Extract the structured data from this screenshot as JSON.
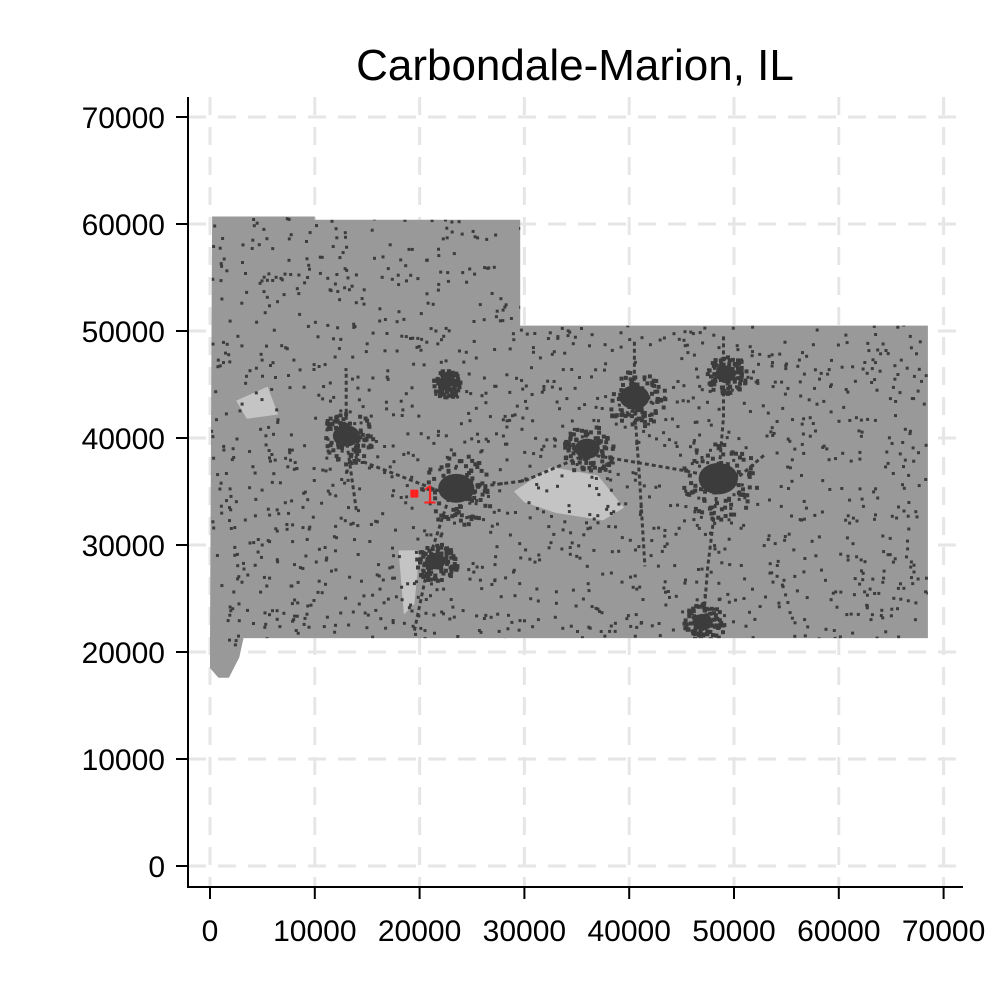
{
  "chart_data": {
    "type": "scatter",
    "title": "Carbondale-Marion, IL",
    "xlabel": "",
    "ylabel": "",
    "xlim": [
      0,
      70000
    ],
    "ylim": [
      0,
      70000
    ],
    "x_ticks": [
      "0",
      "10000",
      "20000",
      "30000",
      "40000",
      "50000",
      "60000",
      "70000"
    ],
    "y_ticks": [
      "0",
      "10000",
      "20000",
      "30000",
      "40000",
      "50000",
      "60000",
      "70000"
    ],
    "grid": true,
    "region_outline": [
      [
        200,
        60700
      ],
      [
        10000,
        60700
      ],
      [
        10000,
        60400
      ],
      [
        29600,
        60400
      ],
      [
        29600,
        50500
      ],
      [
        68500,
        50500
      ],
      [
        68500,
        21300
      ],
      [
        3200,
        21300
      ],
      [
        2800,
        19500
      ],
      [
        1800,
        17600
      ],
      [
        800,
        17600
      ],
      [
        0,
        18500
      ],
      [
        0,
        21500
      ]
    ],
    "urban_clusters": [
      {
        "x": 13000,
        "y": 40200,
        "r": 1700
      },
      {
        "x": 23500,
        "y": 35300,
        "r": 2300
      },
      {
        "x": 40500,
        "y": 43800,
        "r": 1900
      },
      {
        "x": 48500,
        "y": 36200,
        "r": 2500
      },
      {
        "x": 49200,
        "y": 46000,
        "r": 1300
      },
      {
        "x": 36000,
        "y": 39000,
        "r": 1600
      },
      {
        "x": 21500,
        "y": 28500,
        "r": 1300
      },
      {
        "x": 47000,
        "y": 22800,
        "r": 1300
      },
      {
        "x": 22500,
        "y": 45200,
        "r": 900
      }
    ],
    "water_areas": [
      {
        "points": [
          [
            29000,
            35000
          ],
          [
            32500,
            37300
          ],
          [
            37000,
            36500
          ],
          [
            39500,
            33500
          ],
          [
            37500,
            32300
          ],
          [
            33000,
            33000
          ],
          [
            30000,
            34000
          ]
        ]
      },
      {
        "points": [
          [
            2500,
            43500
          ],
          [
            5500,
            44800
          ],
          [
            6500,
            42200
          ],
          [
            3500,
            41800
          ]
        ]
      },
      {
        "points": [
          [
            18000,
            29500
          ],
          [
            20000,
            29500
          ],
          [
            19500,
            24500
          ],
          [
            18500,
            23500
          ]
        ]
      }
    ],
    "points": [
      {
        "x": 19500,
        "y": 34800,
        "label": "1",
        "color": "#ff2020"
      }
    ],
    "colors": {
      "land": "#999999",
      "urban": "#3c3c3c",
      "water": "#c4c4c4",
      "grid": "#e6e6e6",
      "marker": "#ff2020"
    }
  }
}
